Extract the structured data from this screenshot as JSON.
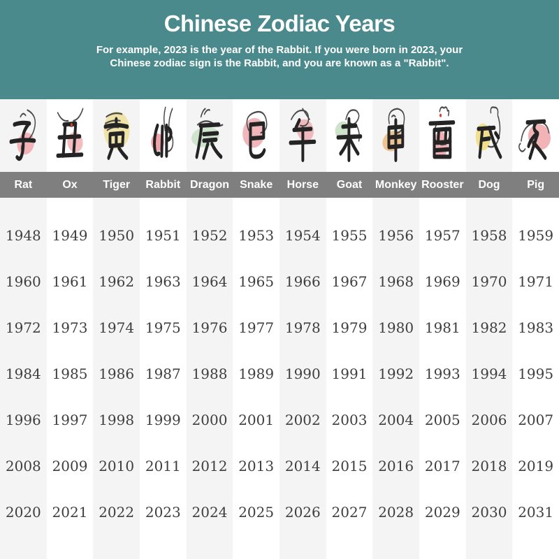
{
  "header": {
    "title": "Chinese Zodiac Years",
    "subtitle_line1": "For example, 2023 is the year of the Rabbit. If you were born in 2023, your",
    "subtitle_line2": "Chinese zodiac sign is the Rabbit, and you are known as a \"Rabbit\".",
    "background_color": "#4a8a8c",
    "text_color": "#ffffff"
  },
  "table": {
    "header_row_color": "#7f7f7f",
    "header_text_color": "#ffffff",
    "stripe_color": "#f4f4f4",
    "year_text_color": "#3e3e3e",
    "ink_color": "#242424",
    "animals": [
      {
        "name": "Rat",
        "character": "子",
        "icon": "rat-icon",
        "blob_color": "#f2b3b6"
      },
      {
        "name": "Ox",
        "character": "丑",
        "icon": "ox-icon",
        "blob_color": "#f4bcbf",
        "accent_color": "#d9402e"
      },
      {
        "name": "Tiger",
        "character": "寅",
        "icon": "tiger-icon",
        "blob_color": "#f0e3a7"
      },
      {
        "name": "Rabbit",
        "character": "卯",
        "icon": "rabbit-icon",
        "blob_color": "#f0a3a8"
      },
      {
        "name": "Dragon",
        "character": "辰",
        "icon": "dragon-icon",
        "blob_color": "#cfe4cc"
      },
      {
        "name": "Snake",
        "character": "巳",
        "icon": "snake-icon",
        "blob_color": "#f0b6ba"
      },
      {
        "name": "Horse",
        "character": "午",
        "icon": "horse-icon",
        "blob_color": "#f0b9bd"
      },
      {
        "name": "Goat",
        "character": "未",
        "icon": "goat-icon",
        "blob_color": "#cde3ca"
      },
      {
        "name": "Monkey",
        "character": "申",
        "icon": "monkey-icon",
        "blob_color": "#f0c490"
      },
      {
        "name": "Rooster",
        "character": "酉",
        "icon": "rooster-icon",
        "blob_color": "#f2b0b5",
        "accent_color": "#d9402e"
      },
      {
        "name": "Dog",
        "character": "戌",
        "icon": "dog-icon",
        "blob_color": "#f2df8e"
      },
      {
        "name": "Pig",
        "character": "亥",
        "icon": "pig-icon",
        "blob_color": "#f2b3b7"
      }
    ]
  },
  "chart_data": {
    "type": "table",
    "title": "Chinese Zodiac Years",
    "columns": [
      "Rat",
      "Ox",
      "Tiger",
      "Rabbit",
      "Dragon",
      "Snake",
      "Horse",
      "Goat",
      "Monkey",
      "Rooster",
      "Dog",
      "Pig"
    ],
    "rows": [
      [
        1948,
        1949,
        1950,
        1951,
        1952,
        1953,
        1954,
        1955,
        1956,
        1957,
        1958,
        1959
      ],
      [
        1960,
        1961,
        1962,
        1963,
        1964,
        1965,
        1966,
        1967,
        1968,
        1969,
        1970,
        1971
      ],
      [
        1972,
        1973,
        1974,
        1975,
        1976,
        1977,
        1978,
        1979,
        1980,
        1981,
        1982,
        1983
      ],
      [
        1984,
        1985,
        1986,
        1987,
        1988,
        1989,
        1990,
        1991,
        1992,
        1993,
        1994,
        1995
      ],
      [
        1996,
        1997,
        1998,
        1999,
        2000,
        2001,
        2002,
        2003,
        2004,
        2005,
        2006,
        2007
      ],
      [
        2008,
        2009,
        2010,
        2011,
        2012,
        2013,
        2014,
        2015,
        2016,
        2017,
        2018,
        2019
      ],
      [
        2020,
        2021,
        2022,
        2023,
        2024,
        2025,
        2026,
        2027,
        2028,
        2029,
        2030,
        2031
      ]
    ]
  }
}
